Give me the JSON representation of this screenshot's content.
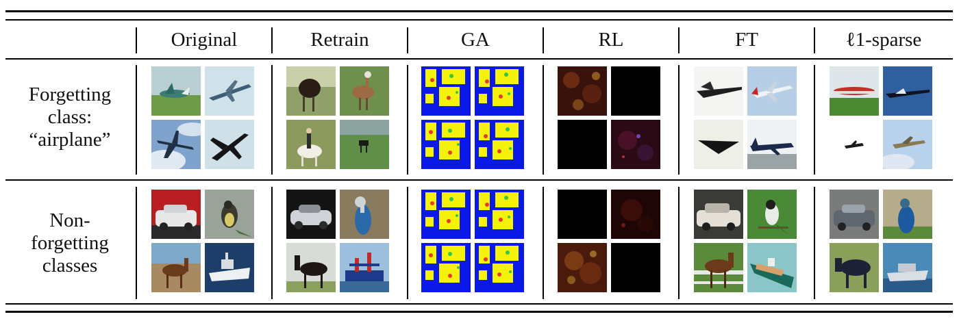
{
  "columns": [
    "Original",
    "Retrain",
    "GA",
    "RL",
    "FT",
    "ℓ1-sparse"
  ],
  "rows": [
    {
      "label_lines": [
        "Forgetting",
        "class:",
        "“airplane”"
      ]
    },
    {
      "label_lines": [
        "Non-",
        "forgetting",
        "classes"
      ]
    }
  ],
  "image_subjects": {
    "row0": {
      "Original": [
        "airplane-on-grass",
        "airplane-in-sky",
        "airplane-in-clouds",
        "airplane-silhouette"
      ],
      "Retrain": [
        "ostrich",
        "deer-bird",
        "horse-rider",
        "small-animal-on-grass"
      ],
      "GA": [
        "noise-pattern",
        "noise-pattern",
        "noise-pattern",
        "noise-pattern"
      ],
      "RL": [
        "dark-red-noise",
        "black",
        "black",
        "dark-purple-noise"
      ],
      "FT": [
        "jet-dark",
        "airliner",
        "stealth-jet",
        "airliner-on-runway"
      ],
      "ℓ1-sparse": [
        "airliner-on-grass",
        "jet-in-sky",
        "small-plane",
        "plane-in-sky"
      ]
    },
    "row1": {
      "Original": [
        "white-car",
        "bird",
        "horse",
        "ship"
      ],
      "Retrain": [
        "silver-car",
        "bird-blue",
        "horse-dark",
        "ship-blue"
      ],
      "GA": [
        "noise-pattern",
        "noise-pattern",
        "noise-pattern",
        "noise-pattern"
      ],
      "RL": [
        "black",
        "dark-red-noise",
        "dark-orange-noise",
        "black"
      ],
      "FT": [
        "vintage-car",
        "small-bird",
        "horse-brown",
        "ship-teal"
      ],
      "ℓ1-sparse": [
        "grey-car",
        "bird-blue",
        "horse-dark",
        "ship-blue"
      ]
    }
  }
}
